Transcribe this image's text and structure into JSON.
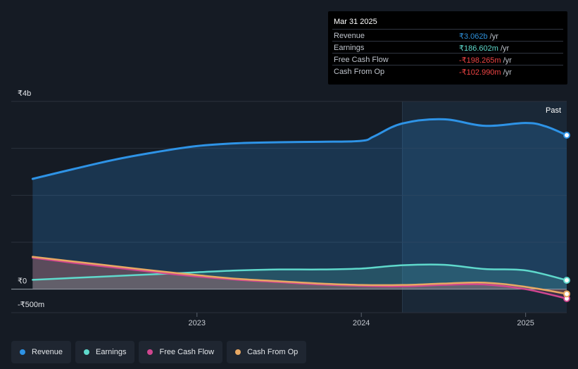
{
  "tooltip": {
    "date": "Mar 31 2025",
    "rows": [
      {
        "label": "Revenue",
        "value": "₹3.062b",
        "unit": "/yr",
        "color": "#2e8fd8"
      },
      {
        "label": "Earnings",
        "value": "₹186.602m",
        "unit": "/yr",
        "color": "#5fd9cc"
      },
      {
        "label": "Free Cash Flow",
        "value": "-₹198.265m",
        "unit": "/yr",
        "color": "#ef4444"
      },
      {
        "label": "Cash From Op",
        "value": "-₹102.990m",
        "unit": "/yr",
        "color": "#ef4444"
      }
    ]
  },
  "legend": [
    {
      "label": "Revenue",
      "color": "#2e93e6"
    },
    {
      "label": "Earnings",
      "color": "#5fd9cc"
    },
    {
      "label": "Free Cash Flow",
      "color": "#d0468f"
    },
    {
      "label": "Cash From Op",
      "color": "#e8a863"
    }
  ],
  "chart_data": {
    "type": "line",
    "ylim": [
      -500,
      4000
    ],
    "y_tick_labels": [
      {
        "value": 4000,
        "label": "₹4b"
      },
      {
        "value": 0,
        "label": "₹0"
      },
      {
        "value": -500,
        "label": "-₹500m"
      }
    ],
    "x_tick_labels": [
      {
        "value": 2023.0,
        "label": "2023"
      },
      {
        "value": 2024.0,
        "label": "2024"
      },
      {
        "value": 2025.0,
        "label": "2025"
      }
    ],
    "xlim": [
      2021.87,
      2025.25
    ],
    "past_label": "Past",
    "past_start": 2024.25,
    "grid": true,
    "series": [
      {
        "name": "Revenue",
        "color": "#2e93e6",
        "fill": true,
        "points": [
          [
            2022.0,
            2350
          ],
          [
            2022.25,
            2560
          ],
          [
            2022.5,
            2760
          ],
          [
            2022.75,
            2920
          ],
          [
            2023.0,
            3050
          ],
          [
            2023.25,
            3110
          ],
          [
            2023.5,
            3130
          ],
          [
            2023.75,
            3140
          ],
          [
            2024.0,
            3160
          ],
          [
            2024.08,
            3260
          ],
          [
            2024.25,
            3530
          ],
          [
            2024.5,
            3620
          ],
          [
            2024.75,
            3480
          ],
          [
            2025.0,
            3540
          ],
          [
            2025.12,
            3470
          ],
          [
            2025.25,
            3280
          ]
        ]
      },
      {
        "name": "Earnings",
        "color": "#5fd9cc",
        "fill": false,
        "points": [
          [
            2022.0,
            200
          ],
          [
            2022.25,
            240
          ],
          [
            2022.5,
            280
          ],
          [
            2022.75,
            320
          ],
          [
            2023.0,
            360
          ],
          [
            2023.25,
            400
          ],
          [
            2023.5,
            420
          ],
          [
            2023.75,
            420
          ],
          [
            2024.0,
            440
          ],
          [
            2024.25,
            510
          ],
          [
            2024.5,
            520
          ],
          [
            2024.75,
            430
          ],
          [
            2025.0,
            400
          ],
          [
            2025.25,
            190
          ]
        ]
      },
      {
        "name": "Free Cash Flow",
        "color": "#d0468f",
        "fill": false,
        "points": [
          [
            2022.0,
            670
          ],
          [
            2022.25,
            560
          ],
          [
            2022.5,
            460
          ],
          [
            2022.75,
            360
          ],
          [
            2023.0,
            270
          ],
          [
            2023.25,
            200
          ],
          [
            2023.5,
            150
          ],
          [
            2023.75,
            100
          ],
          [
            2024.0,
            70
          ],
          [
            2024.25,
            60
          ],
          [
            2024.5,
            90
          ],
          [
            2024.75,
            100
          ],
          [
            2025.0,
            0
          ],
          [
            2025.25,
            -200
          ]
        ]
      },
      {
        "name": "Cash From Op",
        "color": "#e8a863",
        "fill": false,
        "points": [
          [
            2022.0,
            690
          ],
          [
            2022.25,
            590
          ],
          [
            2022.5,
            490
          ],
          [
            2022.75,
            390
          ],
          [
            2023.0,
            300
          ],
          [
            2023.25,
            220
          ],
          [
            2023.5,
            170
          ],
          [
            2023.75,
            120
          ],
          [
            2024.0,
            90
          ],
          [
            2024.25,
            90
          ],
          [
            2024.5,
            120
          ],
          [
            2024.75,
            140
          ],
          [
            2025.0,
            50
          ],
          [
            2025.25,
            -100
          ]
        ]
      }
    ]
  }
}
